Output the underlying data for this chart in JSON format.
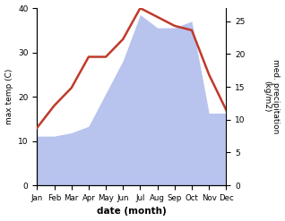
{
  "months": [
    "Jan",
    "Feb",
    "Mar",
    "Apr",
    "May",
    "Jun",
    "Jul",
    "Aug",
    "Sep",
    "Oct",
    "Nov",
    "Dec"
  ],
  "temp": [
    13,
    18,
    22,
    29,
    29,
    33,
    40,
    38,
    36,
    35,
    25,
    17
  ],
  "precip": [
    7.5,
    7.5,
    8,
    9,
    14,
    19,
    26,
    24,
    24,
    25,
    11,
    11
  ],
  "temp_color": "#c0392b",
  "precip_color_fill": "#b8c4ee",
  "xlabel": "date (month)",
  "ylabel_left": "max temp (C)",
  "ylabel_right": "med. precipitation\n(kg/m2)",
  "ylim_left": [
    0,
    40
  ],
  "ylim_right": [
    0,
    27
  ],
  "yticks_left": [
    0,
    10,
    20,
    30,
    40
  ],
  "yticks_right": [
    0,
    5,
    10,
    15,
    20,
    25
  ],
  "line_width": 1.8
}
